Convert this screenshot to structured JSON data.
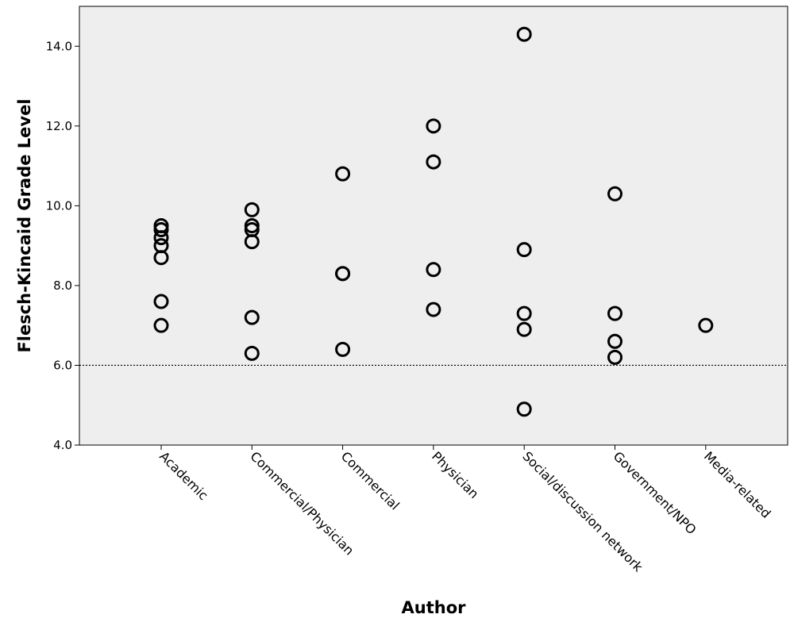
{
  "chart_data": {
    "type": "scatter",
    "xlabel": "Author",
    "ylabel": "Flesch-Kincaid Grade Level",
    "ylim": [
      4.0,
      15.0
    ],
    "y_ticks": [
      "4.0",
      "6.0",
      "8.0",
      "10.0",
      "12.0",
      "14.0"
    ],
    "categories": [
      "Academic",
      "Commercial/Physician",
      "Commercial",
      "Physician",
      "Social/discussion network",
      "Government/NPO",
      "Media-related"
    ],
    "points": [
      {
        "category": "Academic",
        "values": [
          9.5,
          9.4,
          9.2,
          9.0,
          8.7,
          7.6,
          7.0
        ]
      },
      {
        "category": "Commercial/Physician",
        "values": [
          9.9,
          9.5,
          9.4,
          9.1,
          7.2,
          6.3
        ]
      },
      {
        "category": "Commercial",
        "values": [
          10.8,
          8.3,
          8.3,
          6.4
        ]
      },
      {
        "category": "Physician",
        "values": [
          12.0,
          11.1,
          8.4,
          7.4
        ]
      },
      {
        "category": "Social/discussion network",
        "values": [
          14.3,
          8.9,
          7.3,
          6.9,
          4.9
        ]
      },
      {
        "category": "Government/NPO",
        "values": [
          10.3,
          7.3,
          6.6,
          6.2
        ]
      },
      {
        "category": "Media-related",
        "values": [
          7.0
        ]
      }
    ],
    "reference_line": {
      "y": 6.0,
      "style": "dotted"
    },
    "grid": false,
    "legend": "none",
    "colors": {
      "plot_background": "#eeeeee",
      "marker_stroke": "#000000"
    }
  }
}
